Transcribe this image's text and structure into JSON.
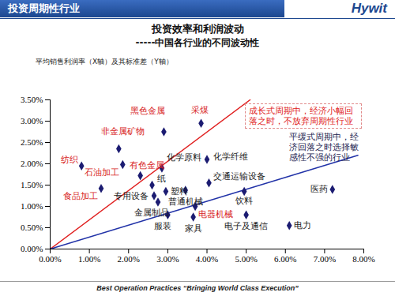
{
  "chart_data": {
    "type": "scatter",
    "header": "投资周期性行业",
    "logo": "Hywit",
    "title": "投资效率和利润波动",
    "subtitle": "-----中国各行业的不同波动性",
    "note": "平均销售利润率（X轴）及其标准差（Y轴）",
    "footer": "Best Operation Practices “Bringing World Class Execution”",
    "marker": "diamond",
    "color": "#1c1c72",
    "grid": false,
    "xlim": [
      0,
      8
    ],
    "ylim": [
      0,
      3.5
    ],
    "xticks": [
      {
        "value": 0,
        "label": "0.00%"
      },
      {
        "value": 1,
        "label": "1.00%"
      },
      {
        "value": 2,
        "label": "2.00%"
      },
      {
        "value": 3,
        "label": "3.00%"
      },
      {
        "value": 4,
        "label": "4.00%"
      },
      {
        "value": 5,
        "label": "5.00%"
      },
      {
        "value": 6,
        "label": "6.00%"
      },
      {
        "value": 7,
        "label": "7.00%"
      },
      {
        "value": 8,
        "label": "8.00%"
      }
    ],
    "yticks": [
      {
        "value": 0,
        "label": "0.00%"
      },
      {
        "value": 0.5,
        "label": "0.50%"
      },
      {
        "value": 1,
        "label": "1.00%"
      },
      {
        "value": 1.5,
        "label": "1.50%"
      },
      {
        "value": 2,
        "label": "2.00%"
      },
      {
        "value": 2.5,
        "label": "2.50%"
      },
      {
        "value": 3,
        "label": "3.00%"
      },
      {
        "value": 3.5,
        "label": "3.50%"
      }
    ],
    "points": [
      {
        "label": "黑色金属",
        "x": 2.9,
        "y": 2.75,
        "color": "#d81e1e"
      },
      {
        "label": "采煤",
        "x": 3.85,
        "y": 2.95,
        "color": "#d81e1e"
      },
      {
        "label": "非金属矿物",
        "x": 1.75,
        "y": 2.35,
        "color": "#d81e1e"
      },
      {
        "label": "纺织",
        "x": 0.8,
        "y": 1.95,
        "color": "#d81e1e"
      },
      {
        "label": "石油加工",
        "x": 1.85,
        "y": 1.98,
        "color": "#d81e1e"
      },
      {
        "label": "有色金属",
        "x": 2.3,
        "y": 1.72,
        "color": "#d81e1e"
      },
      {
        "label": "化学原料",
        "x": 2.85,
        "y": 1.9,
        "color": "#1a1a1a"
      },
      {
        "label": "纸",
        "x": 2.6,
        "y": 1.5,
        "color": "#1a1a1a"
      },
      {
        "label": "化学纤维",
        "x": 4.0,
        "y": 2.1,
        "color": "#1a1a1a"
      },
      {
        "label": "交通运输设备",
        "x": 4.05,
        "y": 1.55,
        "color": "#1a1a1a"
      },
      {
        "label": "塑料",
        "x": 2.95,
        "y": 1.35,
        "color": "#1a1a1a"
      },
      {
        "label": "普通机械",
        "x": 3.45,
        "y": 1.38,
        "color": "#1a1a1a"
      },
      {
        "label": "专用设备",
        "x": 2.65,
        "y": 1.25,
        "color": "#1a1a1a"
      },
      {
        "label": "食品加工",
        "x": 1.3,
        "y": 1.42,
        "color": "#d81e1e"
      },
      {
        "label": "金属制品",
        "x": 2.75,
        "y": 1.1,
        "color": "#1a1a1a"
      },
      {
        "label": "电器机械",
        "x": 3.7,
        "y": 1.0,
        "color": "#d81e1e"
      },
      {
        "label": "服装",
        "x": 3.0,
        "y": 0.8,
        "color": "#1a1a1a"
      },
      {
        "label": "家具",
        "x": 3.65,
        "y": 0.75,
        "color": "#1a1a1a"
      },
      {
        "label": "饮料",
        "x": 4.95,
        "y": 1.35,
        "color": "#1a1a1a"
      },
      {
        "label": "电子及通信",
        "x": 5.0,
        "y": 0.8,
        "color": "#1a1a1a"
      },
      {
        "label": "电力",
        "x": 6.1,
        "y": 0.55,
        "color": "#1a1a1a"
      },
      {
        "label": "医药",
        "x": 7.2,
        "y": 1.4,
        "color": "#1a1a1a"
      }
    ],
    "lines": [
      {
        "x": [
          0,
          5.1
        ],
        "y": [
          0,
          3.5
        ],
        "color": "#e02020"
      },
      {
        "x": [
          0,
          7.85
        ],
        "y": [
          0,
          2.2
        ],
        "color": "#2233a8"
      }
    ],
    "annotations": [
      {
        "text": "成长式周期中，经济小幅回落之时，不放弃周期性行业",
        "color": "#e02020"
      },
      {
        "text": "平缓式周期中，经济回落之时选择敏感性不强的行业",
        "color": "#1a1a50"
      }
    ]
  }
}
